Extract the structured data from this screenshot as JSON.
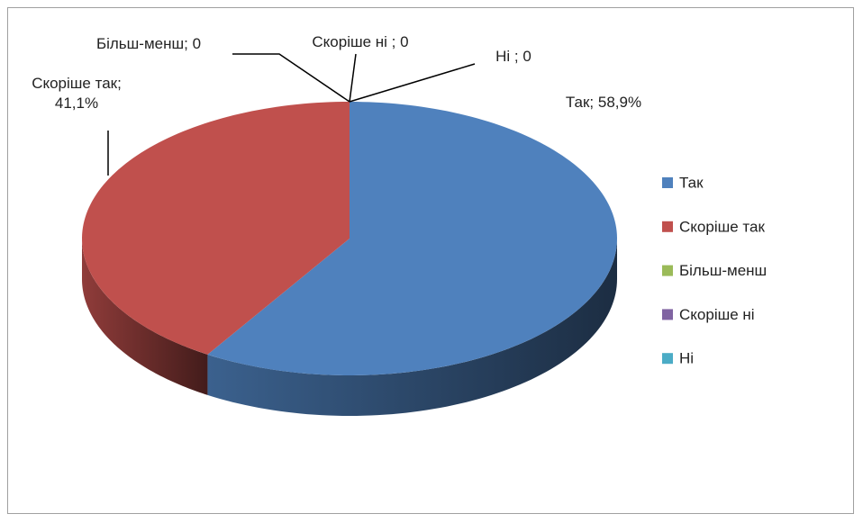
{
  "chart_data": {
    "type": "pie",
    "categories": [
      "Так",
      "Скоріше так",
      "Більш-менш",
      "Скоріше ні",
      "Ні"
    ],
    "values": [
      58.9,
      41.1,
      0,
      0,
      0
    ],
    "value_labels": [
      "Так; 58,9%",
      "Скоріше так; 41,1%",
      "Більш-менш; 0",
      "Скоріше ні ; 0",
      "Ні ; 0"
    ],
    "colors": [
      "#4f81bd",
      "#c0504d",
      "#9bbb59",
      "#8064a2",
      "#4bacc6"
    ],
    "legend": "right"
  }
}
